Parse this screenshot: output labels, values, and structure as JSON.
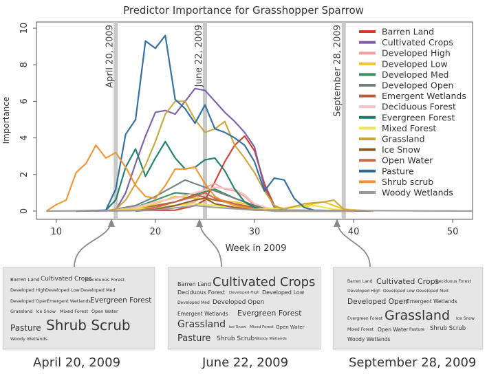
{
  "chart_data": {
    "type": "line",
    "title": "Predictor Importance for Grasshopper Sparrow",
    "xlabel": "Week in 2009",
    "ylabel": "Importance",
    "xlim": [
      8,
      52
    ],
    "ylim": [
      0,
      10.3
    ],
    "xticks": [
      10,
      20,
      30,
      40,
      50
    ],
    "yticks": [
      0,
      2,
      4,
      6,
      8,
      10
    ],
    "grid": false,
    "legend": "top-right",
    "markers": [
      {
        "label": "April 20, 2009",
        "x": 16
      },
      {
        "label": "June 22, 2009",
        "x": 25
      },
      {
        "label": "September 28, 2009",
        "x": 39
      }
    ],
    "series": [
      {
        "name": "Barren Land",
        "color": "#d03a2a",
        "points": [
          [
            12,
            0
          ],
          [
            22,
            0.05
          ],
          [
            24,
            0.3
          ],
          [
            25,
            0.6
          ],
          [
            26,
            1.6
          ],
          [
            27,
            2.7
          ],
          [
            28,
            3.6
          ],
          [
            29,
            4.1
          ],
          [
            30,
            3.3
          ],
          [
            31,
            1.5
          ],
          [
            32,
            0.3
          ],
          [
            33,
            0.05
          ],
          [
            42,
            0
          ]
        ]
      },
      {
        "name": "Cultivated Crops",
        "color": "#7a5aa6",
        "points": [
          [
            12,
            0
          ],
          [
            16,
            0.05
          ],
          [
            17,
            1.0
          ],
          [
            18,
            2.6
          ],
          [
            19,
            4.1
          ],
          [
            20,
            5.4
          ],
          [
            21,
            5.5
          ],
          [
            22,
            5.3
          ],
          [
            23,
            6.0
          ],
          [
            24,
            6.7
          ],
          [
            25,
            6.6
          ],
          [
            26,
            6.0
          ],
          [
            27,
            5.4
          ],
          [
            28,
            4.9
          ],
          [
            29,
            4.3
          ],
          [
            30,
            3.5
          ],
          [
            31,
            1.3
          ],
          [
            32,
            0.2
          ],
          [
            33,
            0.05
          ],
          [
            42,
            0
          ]
        ]
      },
      {
        "name": "Developed High",
        "color": "#f4a0a0",
        "points": [
          [
            15,
            0
          ],
          [
            17,
            0.05
          ],
          [
            20,
            0.2
          ],
          [
            22,
            0.3
          ],
          [
            24,
            0.5
          ],
          [
            25,
            1.3
          ],
          [
            26,
            1.5
          ],
          [
            27,
            1.2
          ],
          [
            28,
            1.1
          ],
          [
            29,
            0.8
          ],
          [
            30,
            0.3
          ],
          [
            31,
            0.05
          ],
          [
            40,
            0
          ]
        ]
      },
      {
        "name": "Developed Low",
        "color": "#f2c12e",
        "points": [
          [
            15,
            0
          ],
          [
            18,
            0.1
          ],
          [
            20,
            0.4
          ],
          [
            22,
            0.8
          ],
          [
            24,
            0.7
          ],
          [
            26,
            0.6
          ],
          [
            28,
            0.5
          ],
          [
            30,
            0.3
          ],
          [
            32,
            0.1
          ],
          [
            35,
            0.3
          ],
          [
            37,
            0.5
          ],
          [
            39,
            0.1
          ],
          [
            42,
            0
          ]
        ]
      },
      {
        "name": "Developed Med",
        "color": "#3b8c5c",
        "points": [
          [
            15,
            0
          ],
          [
            18,
            0.2
          ],
          [
            20,
            0.6
          ],
          [
            22,
            1.0
          ],
          [
            24,
            0.9
          ],
          [
            26,
            1.2
          ],
          [
            28,
            0.7
          ],
          [
            30,
            0.3
          ],
          [
            32,
            0.05
          ],
          [
            40,
            0
          ]
        ]
      },
      {
        "name": "Developed Open",
        "color": "#6f7f78",
        "points": [
          [
            15,
            0
          ],
          [
            18,
            0.3
          ],
          [
            20,
            0.8
          ],
          [
            22,
            1.4
          ],
          [
            23,
            1.7
          ],
          [
            24,
            1.5
          ],
          [
            26,
            1.1
          ],
          [
            28,
            0.7
          ],
          [
            30,
            0.3
          ],
          [
            32,
            0.05
          ],
          [
            40,
            0
          ]
        ]
      },
      {
        "name": "Emergent Wetlands",
        "color": "#b85a3c",
        "points": [
          [
            15,
            0
          ],
          [
            18,
            0.05
          ],
          [
            20,
            0.3
          ],
          [
            22,
            0.5
          ],
          [
            24,
            0.9
          ],
          [
            26,
            0.6
          ],
          [
            28,
            0.4
          ],
          [
            30,
            0.2
          ],
          [
            32,
            0
          ],
          [
            40,
            0
          ]
        ]
      },
      {
        "name": "Deciduous Forest",
        "color": "#f6c2c2",
        "points": [
          [
            15,
            0
          ],
          [
            18,
            0.2
          ],
          [
            20,
            0.5
          ],
          [
            22,
            0.7
          ],
          [
            24,
            1.0
          ],
          [
            26,
            1.3
          ],
          [
            28,
            1.2
          ],
          [
            29,
            0.9
          ],
          [
            30,
            0.4
          ],
          [
            32,
            0.05
          ],
          [
            40,
            0
          ]
        ]
      },
      {
        "name": "Evergreen Forest",
        "color": "#197c6b",
        "points": [
          [
            14,
            0
          ],
          [
            15,
            0.05
          ],
          [
            16,
            0.6
          ],
          [
            17,
            2.4
          ],
          [
            18,
            3.4
          ],
          [
            19,
            1.9
          ],
          [
            20,
            2.9
          ],
          [
            21,
            3.8
          ],
          [
            22,
            2.9
          ],
          [
            23,
            2.3
          ],
          [
            24,
            2.4
          ],
          [
            25,
            2.8
          ],
          [
            26,
            2.9
          ],
          [
            27,
            2.2
          ],
          [
            28,
            1.2
          ],
          [
            29,
            0.5
          ],
          [
            30,
            0.2
          ],
          [
            31,
            0.05
          ],
          [
            40,
            0
          ]
        ]
      },
      {
        "name": "Mixed Forest",
        "color": "#ece646",
        "points": [
          [
            15,
            0
          ],
          [
            18,
            0.1
          ],
          [
            20,
            0.2
          ],
          [
            22,
            0.3
          ],
          [
            24,
            0.4
          ],
          [
            26,
            0.3
          ],
          [
            28,
            0.2
          ],
          [
            30,
            0.1
          ],
          [
            34,
            0.2
          ],
          [
            36,
            0.3
          ],
          [
            38,
            0.1
          ],
          [
            40,
            0
          ]
        ]
      },
      {
        "name": "Grassland",
        "color": "#c9a537",
        "points": [
          [
            15,
            0
          ],
          [
            16,
            0.1
          ],
          [
            17,
            0.6
          ],
          [
            18,
            1.5
          ],
          [
            19,
            2.5
          ],
          [
            20,
            3.8
          ],
          [
            21,
            5.3
          ],
          [
            22,
            6.0
          ],
          [
            23,
            6.0
          ],
          [
            24,
            5.0
          ],
          [
            25,
            4.3
          ],
          [
            26,
            4.5
          ],
          [
            27,
            4.9
          ],
          [
            28,
            3.6
          ],
          [
            29,
            2.9
          ],
          [
            30,
            2.1
          ],
          [
            31,
            1.1
          ],
          [
            32,
            0.3
          ],
          [
            33,
            0.1
          ],
          [
            35,
            0.4
          ],
          [
            37,
            0.5
          ],
          [
            38,
            0.6
          ],
          [
            39,
            0.1
          ],
          [
            40,
            0
          ]
        ]
      },
      {
        "name": "Ice Snow",
        "color": "#8b5a2b",
        "points": [
          [
            18,
            0
          ],
          [
            20,
            0.1
          ],
          [
            22,
            0.3
          ],
          [
            24,
            0.6
          ],
          [
            25,
            0.7
          ],
          [
            26,
            0.4
          ],
          [
            28,
            0.2
          ],
          [
            30,
            0.05
          ],
          [
            40,
            0
          ]
        ]
      },
      {
        "name": "Open Water",
        "color": "#c26a4a",
        "points": [
          [
            18,
            0
          ],
          [
            20,
            0.2
          ],
          [
            22,
            0.5
          ],
          [
            24,
            0.8
          ],
          [
            25,
            1.0
          ],
          [
            26,
            0.7
          ],
          [
            28,
            0.4
          ],
          [
            30,
            0.1
          ],
          [
            32,
            0
          ],
          [
            40,
            0
          ]
        ]
      },
      {
        "name": "Pasture",
        "color": "#2a6a9e",
        "points": [
          [
            12,
            0
          ],
          [
            15,
            0.05
          ],
          [
            16,
            1.2
          ],
          [
            17,
            4.2
          ],
          [
            18,
            5.0
          ],
          [
            19,
            9.3
          ],
          [
            20,
            8.9
          ],
          [
            21,
            9.6
          ],
          [
            22,
            6.1
          ],
          [
            23,
            5.6
          ],
          [
            24,
            4.8
          ],
          [
            25,
            5.8
          ],
          [
            26,
            4.5
          ],
          [
            27,
            4.3
          ],
          [
            28,
            4.0
          ],
          [
            29,
            3.6
          ],
          [
            30,
            2.7
          ],
          [
            31,
            1.1
          ],
          [
            32,
            1.8
          ],
          [
            33,
            1.7
          ],
          [
            34,
            0.7
          ],
          [
            35,
            0.2
          ],
          [
            36,
            0.05
          ],
          [
            40,
            0
          ]
        ]
      },
      {
        "name": "Shrub scrub",
        "color": "#f0932b",
        "points": [
          [
            9,
            0
          ],
          [
            10,
            0.35
          ],
          [
            11,
            0.6
          ],
          [
            12,
            2.1
          ],
          [
            13,
            2.6
          ],
          [
            14,
            3.6
          ],
          [
            15,
            2.9
          ],
          [
            16,
            3.2
          ],
          [
            17,
            2.4
          ],
          [
            18,
            1.4
          ],
          [
            19,
            0.8
          ],
          [
            20,
            0.7
          ],
          [
            21,
            1.4
          ],
          [
            22,
            2.3
          ],
          [
            23,
            2.3
          ],
          [
            24,
            2.4
          ],
          [
            25,
            1.5
          ],
          [
            26,
            0.8
          ],
          [
            27,
            0.5
          ],
          [
            28,
            0.3
          ],
          [
            30,
            0.1
          ],
          [
            32,
            0
          ],
          [
            40,
            0
          ]
        ]
      },
      {
        "name": "Woody Wetlands",
        "color": "#9a9a9a",
        "points": [
          [
            9,
            0
          ],
          [
            20,
            0.05
          ],
          [
            24,
            0.3
          ],
          [
            26,
            0.2
          ],
          [
            30,
            0.05
          ],
          [
            52,
            0
          ]
        ]
      }
    ]
  },
  "wordclouds": [
    {
      "date": "April 20, 2009",
      "words": [
        {
          "text": "Barren Land",
          "size": 7
        },
        {
          "text": "Cultivated Crops",
          "size": 9
        },
        {
          "text": "Deciduous Forest",
          "size": 6.5
        },
        {
          "text": "Developed High",
          "size": 6.5
        },
        {
          "text": "Developed Low",
          "size": 6.5
        },
        {
          "text": "Developed Med",
          "size": 6.5
        },
        {
          "text": "Developed Open",
          "size": 6.5
        },
        {
          "text": "Emergent Wetlands",
          "size": 6.5
        },
        {
          "text": "Evergreen Forest",
          "size": 10.5
        },
        {
          "text": "Grassland",
          "size": 6.5
        },
        {
          "text": "Ice Snow",
          "size": 6.5
        },
        {
          "text": "Mixed Forest",
          "size": 6.5
        },
        {
          "text": "Open Water",
          "size": 6.5
        },
        {
          "text": "Pasture",
          "size": 12
        },
        {
          "text": "Shrub Scrub",
          "size": 20
        },
        {
          "text": "Woody Wetlands",
          "size": 6.5
        }
      ]
    },
    {
      "date": "June 22, 2009",
      "words": [
        {
          "text": "Barren Land",
          "size": 8
        },
        {
          "text": "Cultivated Crops",
          "size": 18
        },
        {
          "text": "Deciduous Forest",
          "size": 8
        },
        {
          "text": "Developed High",
          "size": 5.5
        },
        {
          "text": "Developed Low",
          "size": 8
        },
        {
          "text": "Developed Med",
          "size": 6
        },
        {
          "text": "Developed Open",
          "size": 9
        },
        {
          "text": "Emergent Wetlands",
          "size": 7.5
        },
        {
          "text": "Evergreen Forest",
          "size": 11
        },
        {
          "text": "Grassland",
          "size": 14
        },
        {
          "text": "Ice Snow",
          "size": 5.5
        },
        {
          "text": "Mixed Forest",
          "size": 5.5
        },
        {
          "text": "Open Water",
          "size": 7
        },
        {
          "text": "Pasture",
          "size": 13
        },
        {
          "text": "Shrub Scrub",
          "size": 9
        },
        {
          "text": "Woody Wetlands",
          "size": 5.5
        }
      ]
    },
    {
      "date": "September 28, 2009",
      "words": [
        {
          "text": "Barren Land",
          "size": 6
        },
        {
          "text": "Cultivated Crops",
          "size": 11
        },
        {
          "text": "Deciduous Forest",
          "size": 6
        },
        {
          "text": "Developed High",
          "size": 6
        },
        {
          "text": "Developed Low",
          "size": 6
        },
        {
          "text": "Developed Med",
          "size": 6
        },
        {
          "text": "Developed Open",
          "size": 10.5
        },
        {
          "text": "Emergent Wetlands",
          "size": 7.5
        },
        {
          "text": "Evergreen Forest",
          "size": 6
        },
        {
          "text": "Grassland",
          "size": 19
        },
        {
          "text": "Ice Snow",
          "size": 6
        },
        {
          "text": "Mixed Forest",
          "size": 6
        },
        {
          "text": "Open Water",
          "size": 7.5
        },
        {
          "text": "Pasture",
          "size": 6
        },
        {
          "text": "Shrub Scrub",
          "size": 8.5
        },
        {
          "text": "Woody Wetlands",
          "size": 7.5
        }
      ]
    }
  ]
}
